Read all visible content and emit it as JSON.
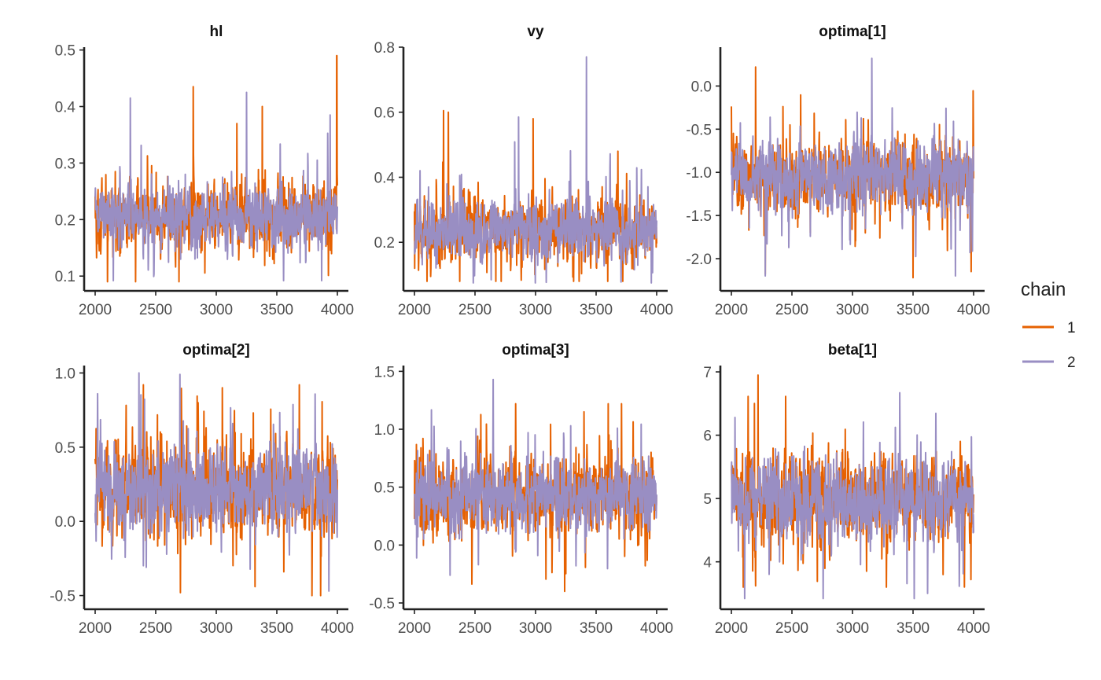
{
  "colors": {
    "chain1": "#e66101",
    "chain2": "#998ec3"
  },
  "legend": {
    "title": "chain",
    "entries": [
      "1",
      "2"
    ],
    "placement": "right"
  },
  "chart_data": [
    {
      "type": "line",
      "title": "hl",
      "xlim": [
        2000,
        4000
      ],
      "ylim": [
        0.085,
        0.505
      ],
      "xticks": [
        2000,
        2500,
        3000,
        3500,
        4000
      ],
      "yticks": [
        0.1,
        0.2,
        0.3,
        0.4,
        0.5
      ],
      "ytick_labels": [
        "0.1",
        "0.2",
        "0.3",
        "0.4",
        "0.5"
      ],
      "series": [
        {
          "name": "1",
          "center": 0.205,
          "sd": 0.038,
          "min": 0.09,
          "max": 0.49,
          "spikes": [
            [
              3995,
              0.49
            ],
            [
              2810,
              0.435
            ],
            [
              3380,
              0.4
            ],
            [
              3170,
              0.37
            ]
          ]
        },
        {
          "name": "2",
          "center": 0.205,
          "sd": 0.036,
          "min": 0.092,
          "max": 0.43,
          "spikes": [
            [
              3250,
              0.425
            ],
            [
              2290,
              0.415
            ],
            [
              3940,
              0.385
            ]
          ]
        }
      ]
    },
    {
      "type": "line",
      "title": "vy",
      "xlim": [
        2000,
        4000
      ],
      "ylim": [
        0.07,
        0.8
      ],
      "xticks": [
        2000,
        2500,
        3000,
        3500,
        4000
      ],
      "yticks": [
        0.2,
        0.4,
        0.6,
        0.8
      ],
      "ytick_labels": [
        "0.2",
        "0.4",
        "0.6",
        "0.8"
      ],
      "series": [
        {
          "name": "1",
          "center": 0.235,
          "sd": 0.062,
          "min": 0.08,
          "max": 0.61,
          "spikes": [
            [
              2240,
              0.605
            ],
            [
              2280,
              0.6
            ],
            [
              2980,
              0.58
            ],
            [
              3680,
              0.48
            ]
          ]
        },
        {
          "name": "2",
          "center": 0.235,
          "sd": 0.06,
          "min": 0.075,
          "max": 0.77,
          "spikes": [
            [
              3420,
              0.77
            ],
            [
              2860,
              0.585
            ]
          ]
        }
      ]
    },
    {
      "type": "line",
      "title": "optima[1]",
      "xlim": [
        2000,
        4000
      ],
      "ylim": [
        -2.3,
        0.45
      ],
      "xticks": [
        2000,
        2500,
        3000,
        3500,
        4000
      ],
      "yticks": [
        -2.0,
        -1.5,
        -1.0,
        -0.5,
        0.0
      ],
      "ytick_labels": [
        "-2.0",
        "-1.5",
        "-1.0",
        "-0.5",
        "0.0"
      ],
      "series": [
        {
          "name": "1",
          "center": -1.05,
          "sd": 0.28,
          "min": -2.22,
          "max": 0.22,
          "spikes": [
            [
              2200,
              0.22
            ],
            [
              3500,
              -2.22
            ],
            [
              2280,
              -2.18
            ],
            [
              3980,
              -2.15
            ]
          ]
        },
        {
          "name": "2",
          "center": -1.05,
          "sd": 0.27,
          "min": -2.2,
          "max": 0.32,
          "spikes": [
            [
              3160,
              0.32
            ],
            [
              3850,
              -2.2
            ]
          ]
        }
      ]
    },
    {
      "type": "line",
      "title": "optima[2]",
      "xlim": [
        2000,
        4000
      ],
      "ylim": [
        -0.55,
        1.05
      ],
      "xticks": [
        2000,
        2500,
        3000,
        3500,
        4000
      ],
      "yticks": [
        -0.5,
        0.0,
        0.5,
        1.0
      ],
      "ytick_labels": [
        "-0.5",
        "0.0",
        "0.5",
        "1.0"
      ],
      "series": [
        {
          "name": "1",
          "center": 0.22,
          "sd": 0.2,
          "min": -0.5,
          "max": 0.92,
          "spikes": [
            [
              3050,
              0.9
            ],
            [
              3790,
              -0.5
            ],
            [
              2850,
              0.8
            ],
            [
              3320,
              -0.44
            ]
          ]
        },
        {
          "name": "2",
          "center": 0.22,
          "sd": 0.19,
          "min": -0.47,
          "max": 1.0,
          "spikes": [
            [
              2700,
              0.99
            ],
            [
              2020,
              0.86
            ],
            [
              3930,
              -0.47
            ]
          ]
        }
      ]
    },
    {
      "type": "line",
      "title": "optima[3]",
      "xlim": [
        2000,
        4000
      ],
      "ylim": [
        -0.5,
        1.55
      ],
      "xticks": [
        2000,
        2500,
        3000,
        3500,
        4000
      ],
      "yticks": [
        -0.5,
        0.0,
        0.5,
        1.0,
        1.5
      ],
      "ytick_labels": [
        "-0.5",
        "0.0",
        "0.5",
        "1.0",
        "1.5"
      ],
      "series": [
        {
          "name": "1",
          "center": 0.42,
          "sd": 0.22,
          "min": -0.4,
          "max": 1.22,
          "spikes": [
            [
              3600,
              1.22
            ],
            [
              3240,
              -0.4
            ],
            [
              3400,
              1.15
            ]
          ]
        },
        {
          "name": "2",
          "center": 0.42,
          "sd": 0.21,
          "min": -0.3,
          "max": 1.43,
          "spikes": [
            [
              2650,
              1.43
            ]
          ]
        }
      ]
    },
    {
      "type": "line",
      "title": "beta[1]",
      "xlim": [
        2000,
        4000
      ],
      "ylim": [
        3.35,
        7.1
      ],
      "xticks": [
        2000,
        2500,
        3000,
        3500,
        4000
      ],
      "yticks": [
        4,
        5,
        6,
        7
      ],
      "ytick_labels": [
        "4",
        "5",
        "6",
        "7"
      ],
      "series": [
        {
          "name": "1",
          "center": 5.0,
          "sd": 0.45,
          "min": 3.6,
          "max": 6.95,
          "spikes": [
            [
              2220,
              6.95
            ],
            [
              2190,
              6.5
            ],
            [
              2200,
              3.62
            ]
          ]
        },
        {
          "name": "2",
          "center": 5.0,
          "sd": 0.43,
          "min": 3.42,
          "max": 6.67,
          "spikes": [
            [
              3390,
              6.67
            ],
            [
              3510,
              3.42
            ],
            [
              3620,
              3.5
            ]
          ]
        }
      ]
    }
  ]
}
